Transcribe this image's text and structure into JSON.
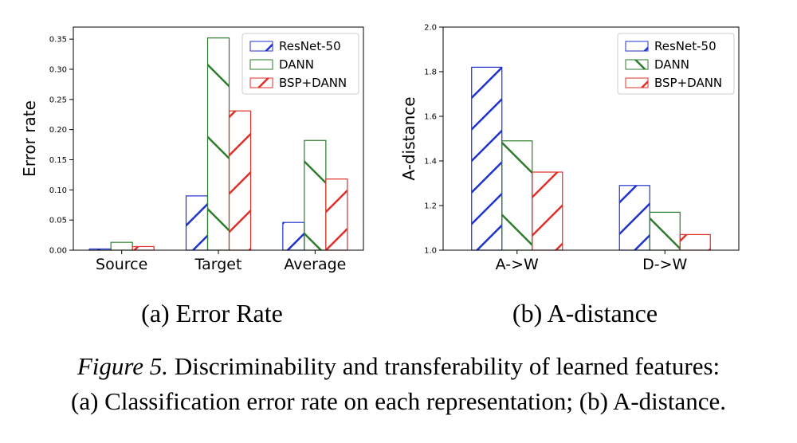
{
  "figure": {
    "caption_label": "Figure 5.",
    "caption_line1_rest": " Discriminability and transferability of learned features:",
    "caption_line2": "(a) Classification error rate on each representation; (b)  A-distance."
  },
  "colors": {
    "ResNet-50": "#1f33cc",
    "DANN": "#2e7d2e",
    "BSP+DANN": "#e0302a"
  },
  "chart_data": [
    {
      "type": "bar",
      "subtitle": "(a)  Error Rate",
      "ylabel": "Error rate",
      "xlabel": "",
      "ylim": [
        0,
        0.37
      ],
      "yticks": [
        "0.00",
        "0.05",
        "0.10",
        "0.15",
        "0.20",
        "0.25",
        "0.30",
        "0.35"
      ],
      "categories": [
        "Source",
        "Target",
        "Average"
      ],
      "legend_position": "top-right",
      "series": [
        {
          "name": "ResNet-50",
          "values": [
            0.002,
            0.09,
            0.046
          ]
        },
        {
          "name": "DANN",
          "values": [
            0.013,
            0.352,
            0.182
          ]
        },
        {
          "name": "BSP+DANN",
          "values": [
            0.006,
            0.231,
            0.118
          ]
        }
      ]
    },
    {
      "type": "bar",
      "subtitle": "(b)  A-distance",
      "ylabel": "A-distance",
      "xlabel": "",
      "ylim": [
        1.0,
        2.0
      ],
      "yticks": [
        "1.0",
        "1.2",
        "1.4",
        "1.6",
        "1.8",
        "2.0"
      ],
      "categories": [
        "A->W",
        "D->W"
      ],
      "legend_position": "top-right",
      "series": [
        {
          "name": "ResNet-50",
          "values": [
            1.82,
            1.29
          ]
        },
        {
          "name": "DANN",
          "values": [
            1.49,
            1.17
          ]
        },
        {
          "name": "BSP+DANN",
          "values": [
            1.35,
            1.07
          ]
        }
      ]
    }
  ]
}
